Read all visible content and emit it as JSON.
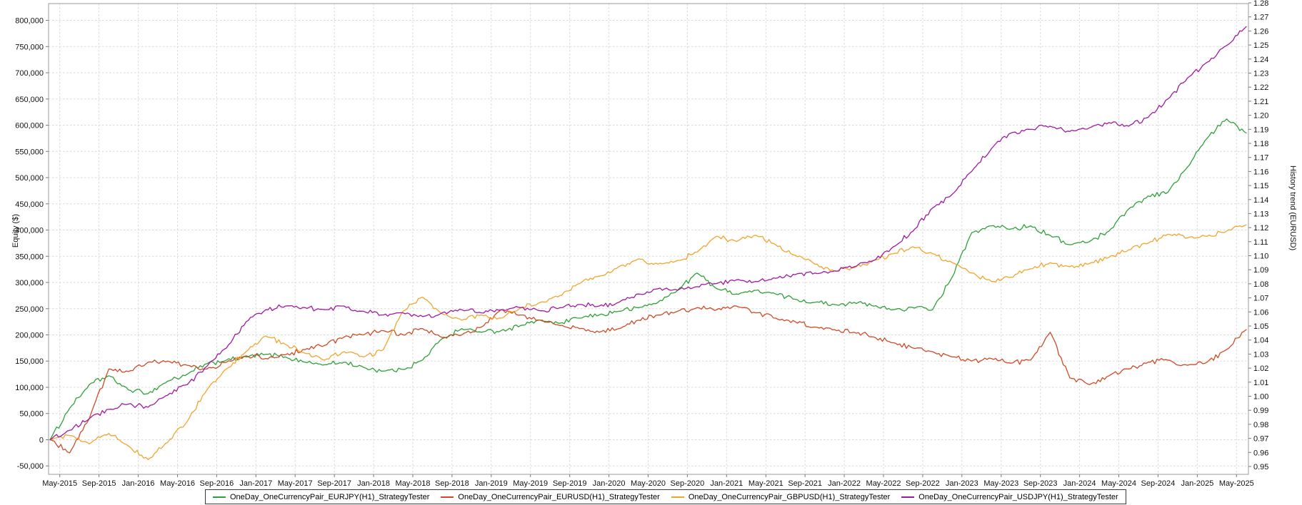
{
  "chart_data": {
    "type": "line",
    "title": "",
    "xlabel": "",
    "ylabel_left": "Equity ($)",
    "ylabel_right": "History trend (EURUSD)",
    "grid": "dashed",
    "legend_position": "bottom",
    "x_range_months": [
      0,
      122
    ],
    "x_epoch": "Apr-2015",
    "x_tick_positions_months": [
      1,
      5,
      9,
      13,
      17,
      21,
      25,
      29,
      33,
      37,
      41,
      45,
      49,
      53,
      57,
      61,
      65,
      69,
      73,
      77,
      81,
      85,
      89,
      93,
      97,
      101,
      105,
      109,
      113,
      117,
      121
    ],
    "x_tick_labels": [
      "May-2015",
      "Sep-2015",
      "Jan-2016",
      "May-2016",
      "Sep-2016",
      "Jan-2017",
      "May-2017",
      "Sep-2017",
      "Jan-2018",
      "May-2018",
      "Sep-2018",
      "Jan-2019",
      "May-2019",
      "Sep-2019",
      "Jan-2020",
      "May-2020",
      "Sep-2020",
      "Jan-2021",
      "May-2021",
      "Sep-2021",
      "Jan-2022",
      "May-2022",
      "Sep-2022",
      "Jan-2023",
      "May-2023",
      "Sep-2023",
      "Jan-2024",
      "May-2024",
      "Sep-2024",
      "Jan-2025",
      "May-2025"
    ],
    "y_left": {
      "range": [
        -66000,
        832000
      ],
      "ticks": [
        -50000,
        0,
        50000,
        100000,
        150000,
        200000,
        250000,
        300000,
        350000,
        400000,
        450000,
        500000,
        550000,
        600000,
        650000,
        700000,
        750000,
        800000
      ],
      "tick_labels": [
        "-50,000",
        "0",
        "50,000",
        "100,000",
        "150,000",
        "200,000",
        "250,000",
        "300,000",
        "350,000",
        "400,000",
        "450,000",
        "500,000",
        "550,000",
        "600,000",
        "650,000",
        "700,000",
        "750,000",
        "800,000"
      ]
    },
    "y_right": {
      "range": [
        0.9444,
        1.2795
      ],
      "ticks": [
        0.95,
        0.96,
        0.97,
        0.98,
        0.99,
        1.0,
        1.01,
        1.02,
        1.03,
        1.04,
        1.05,
        1.06,
        1.07,
        1.08,
        1.09,
        1.1,
        1.11,
        1.12,
        1.13,
        1.14,
        1.15,
        1.16,
        1.17,
        1.18,
        1.19,
        1.2,
        1.21,
        1.22,
        1.23,
        1.24,
        1.25,
        1.26,
        1.27,
        1.28
      ],
      "tick_labels": [
        "0.95",
        "0.96",
        "0.97",
        "0.98",
        "0.99",
        "1.00",
        "1.01",
        "1.02",
        "1.03",
        "1.04",
        "1.05",
        "1.06",
        "1.07",
        "1.08",
        "1.09",
        "1.10",
        "1.11",
        "1.12",
        "1.13",
        "1.14",
        "1.15",
        "1.16",
        "1.17",
        "1.18",
        "1.19",
        "1.20",
        "1.21",
        "1.22",
        "1.23",
        "1.24",
        "1.25",
        "1.26",
        "1.27",
        "1.28"
      ]
    },
    "series": [
      {
        "name": "OneDay_OneCurrencyPair_EURJPY(H1)_StrategyTester",
        "color": "#2FA039",
        "axis": "left",
        "x_step_months": 2,
        "values": [
          0,
          60000,
          105000,
          122000,
          95000,
          88000,
          112000,
          125000,
          145000,
          152000,
          158000,
          163000,
          158000,
          148000,
          143000,
          148000,
          138000,
          131000,
          134000,
          152000,
          193000,
          212000,
          205000,
          208000,
          218000,
          228000,
          222000,
          232000,
          238000,
          245000,
          252000,
          262000,
          285000,
          318000,
          288000,
          278000,
          285000,
          278000,
          268000,
          262000,
          258000,
          262000,
          255000,
          248000,
          252000,
          248000,
          310000,
          395000,
          408000,
          402000,
          408000,
          390000,
          372000,
          378000,
          398000,
          440000,
          465000,
          472000,
          520000,
          575000,
          612000,
          585000
        ]
      },
      {
        "name": "OneDay_OneCurrencyPair_EURUSD(H1)_StrategyTester",
        "color": "#CF4A26",
        "axis": "left",
        "x_step_months": 2,
        "values": [
          0,
          -25000,
          40000,
          135000,
          130000,
          148000,
          150000,
          142000,
          135000,
          148000,
          160000,
          155000,
          162000,
          172000,
          180000,
          196000,
          200000,
          208000,
          200000,
          212000,
          195000,
          200000,
          215000,
          248000,
          238000,
          228000,
          218000,
          212000,
          205000,
          212000,
          228000,
          238000,
          245000,
          252000,
          248000,
          255000,
          242000,
          232000,
          225000,
          215000,
          210000,
          205000,
          196000,
          185000,
          175000,
          168000,
          158000,
          150000,
          155000,
          146000,
          152000,
          205000,
          118000,
          105000,
          122000,
          135000,
          148000,
          152000,
          142000,
          148000,
          172000,
          210000
        ]
      },
      {
        "name": "OneDay_OneCurrencyPair_GBPUSD(H1)_StrategyTester",
        "color": "#F3A42C",
        "axis": "left",
        "x_step_months": 2,
        "values": [
          0,
          8000,
          -8000,
          12000,
          -12000,
          -38000,
          -5000,
          35000,
          95000,
          135000,
          168000,
          198000,
          182000,
          165000,
          152000,
          168000,
          158000,
          172000,
          245000,
          272000,
          240000,
          228000,
          238000,
          232000,
          252000,
          262000,
          275000,
          298000,
          312000,
          330000,
          345000,
          335000,
          342000,
          358000,
          388000,
          378000,
          390000,
          372000,
          352000,
          335000,
          322000,
          328000,
          342000,
          355000,
          368000,
          355000,
          338000,
          318000,
          302000,
          310000,
          326000,
          338000,
          330000,
          336000,
          348000,
          362000,
          375000,
          392000,
          385000,
          388000,
          398000,
          410000
        ]
      },
      {
        "name": "OneDay_OneCurrencyPair_USDJPY(H1)_StrategyTester",
        "color": "#A01AA0",
        "axis": "left",
        "x_step_months": 2,
        "values": [
          0,
          18000,
          40000,
          58000,
          68000,
          62000,
          85000,
          105000,
          140000,
          175000,
          225000,
          248000,
          255000,
          252000,
          248000,
          255000,
          245000,
          238000,
          242000,
          235000,
          242000,
          248000,
          242000,
          248000,
          252000,
          246000,
          252000,
          258000,
          255000,
          262000,
          278000,
          288000,
          285000,
          292000,
          298000,
          305000,
          302000,
          308000,
          315000,
          318000,
          322000,
          330000,
          342000,
          368000,
          398000,
          442000,
          468000,
          512000,
          555000,
          585000,
          592000,
          598000,
          588000,
          595000,
          605000,
          598000,
          615000,
          650000,
          690000,
          720000,
          752000,
          788000
        ]
      }
    ]
  }
}
